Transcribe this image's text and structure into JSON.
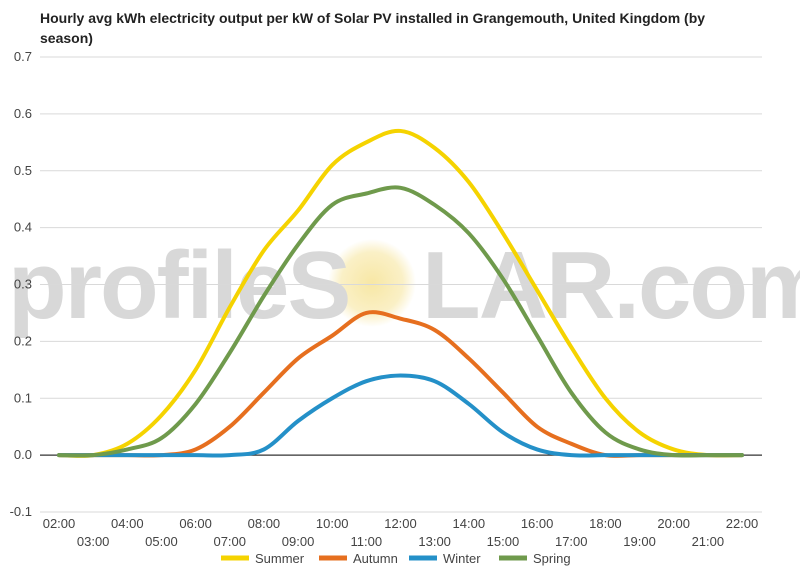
{
  "watermark": {
    "text_left": "profileS",
    "text_middle": "O",
    "text_right": "LAR.com",
    "color": "#d8d8d8",
    "sun_color": "#f7e6a0"
  },
  "chart_data": {
    "type": "line",
    "title": "Hourly avg kWh electricity output per kW of Solar PV installed in Grangemouth, United Kingdom (by season)",
    "xlabel": "",
    "ylabel": "",
    "ylim": [
      -0.1,
      0.7
    ],
    "yticks": [
      -0.1,
      0.0,
      0.1,
      0.2,
      0.3,
      0.4,
      0.5,
      0.6,
      0.7
    ],
    "ytick_labels": [
      "-0.1",
      "0.0",
      "0.1",
      "0.2",
      "0.3",
      "0.4",
      "0.5",
      "0.6",
      "0.7"
    ],
    "grid": true,
    "legend_position": "bottom-center",
    "x": [
      "02:00",
      "03:00",
      "04:00",
      "05:00",
      "06:00",
      "07:00",
      "08:00",
      "09:00",
      "10:00",
      "11:00",
      "12:00",
      "13:00",
      "14:00",
      "15:00",
      "16:00",
      "17:00",
      "18:00",
      "19:00",
      "20:00",
      "21:00",
      "22:00"
    ],
    "series": [
      {
        "name": "Summer",
        "color": "#f5d300",
        "values": [
          0.0,
          0.0,
          0.02,
          0.07,
          0.15,
          0.26,
          0.36,
          0.43,
          0.51,
          0.55,
          0.57,
          0.54,
          0.48,
          0.39,
          0.29,
          0.19,
          0.1,
          0.04,
          0.01,
          0.0,
          0.0
        ]
      },
      {
        "name": "Autumn",
        "color": "#e66f1f",
        "values": [
          0.0,
          0.0,
          0.0,
          0.0,
          0.01,
          0.05,
          0.11,
          0.17,
          0.21,
          0.25,
          0.24,
          0.22,
          0.17,
          0.11,
          0.05,
          0.02,
          0.0,
          0.0,
          0.0,
          0.0,
          0.0
        ]
      },
      {
        "name": "Winter",
        "color": "#2490c8",
        "values": [
          0.0,
          0.0,
          0.0,
          0.0,
          0.0,
          0.0,
          0.01,
          0.06,
          0.1,
          0.13,
          0.14,
          0.13,
          0.09,
          0.04,
          0.01,
          0.0,
          0.0,
          0.0,
          0.0,
          0.0,
          0.0
        ]
      },
      {
        "name": "Spring",
        "color": "#6f9a4c",
        "values": [
          0.0,
          0.0,
          0.01,
          0.03,
          0.09,
          0.18,
          0.28,
          0.37,
          0.44,
          0.46,
          0.47,
          0.44,
          0.39,
          0.31,
          0.21,
          0.11,
          0.04,
          0.01,
          0.0,
          0.0,
          0.0
        ]
      }
    ]
  }
}
